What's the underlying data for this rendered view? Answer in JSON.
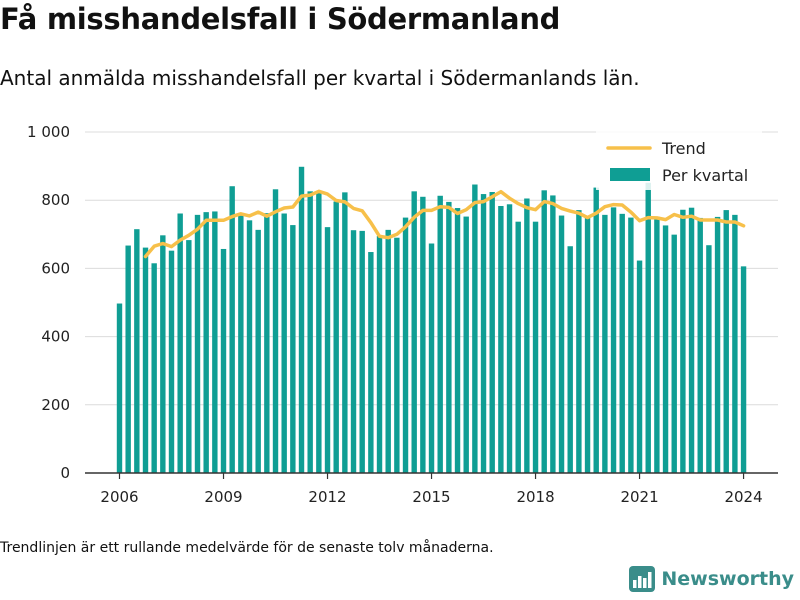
{
  "title": "Få misshandelsfall i Södermanland",
  "subtitle": "Antal anmälda misshandelsfall per kvartal i Södermanlands län.",
  "footnote": "Trendlinjen är ett rullande medelvärde för de senaste tolv månaderna.",
  "brand": {
    "name": "Newsworthy",
    "icon": "newsworthy-logo-icon"
  },
  "colors": {
    "bars": "#0f9e94",
    "trend": "#f7c04a",
    "grid": "#dcdcdc",
    "axis": "#333333",
    "brand": "#3a8d8a"
  },
  "chart_data": {
    "type": "bar",
    "x_start": "2006 Q1",
    "x_ticks": [
      2006,
      2009,
      2012,
      2015,
      2018,
      2021,
      2024
    ],
    "ylim": [
      0,
      1000
    ],
    "y_ticks": [
      0,
      200,
      400,
      600,
      800,
      1000
    ],
    "y_tick_labels": [
      "0",
      "200",
      "400",
      "600",
      "800",
      "1 000"
    ],
    "grid": true,
    "legend_position": "top-right",
    "legend": [
      "Trend",
      "Per kvartal"
    ],
    "series": [
      {
        "name": "Per kvartal",
        "kind": "bar",
        "values": [
          497,
          667,
          715,
          661,
          615,
          697,
          652,
          761,
          683,
          757,
          765,
          767,
          657,
          841,
          755,
          741,
          713,
          762,
          832,
          761,
          727,
          898,
          826,
          826,
          721,
          796,
          823,
          712,
          710,
          648,
          695,
          713,
          690,
          749,
          826,
          810,
          673,
          813,
          795,
          777,
          752,
          846,
          818,
          824,
          783,
          788,
          737,
          805,
          737,
          829,
          814,
          755,
          665,
          771,
          754,
          837,
          757,
          779,
          760,
          749,
          623,
          851,
          752,
          726,
          699,
          772,
          778,
          748,
          668,
          751,
          771,
          757,
          606
        ]
      },
      {
        "name": "Trend",
        "kind": "line",
        "values": [
          null,
          null,
          null,
          635,
          665,
          673,
          664,
          683,
          697,
          715,
          741,
          741,
          741,
          752,
          760,
          754,
          765,
          753,
          766,
          777,
          780,
          812,
          815,
          826,
          818,
          799,
          795,
          776,
          769,
          734,
          694,
          690,
          700,
          722,
          750,
          770,
          770,
          781,
          779,
          761,
          772,
          793,
          796,
          810,
          825,
          806,
          790,
          778,
          772,
          796,
          790,
          776,
          768,
          762,
          749,
          762,
          781,
          787,
          786,
          765,
          740,
          749,
          748,
          743,
          758,
          750,
          753,
          742,
          742,
          742,
          736,
          736,
          725
        ]
      }
    ]
  }
}
